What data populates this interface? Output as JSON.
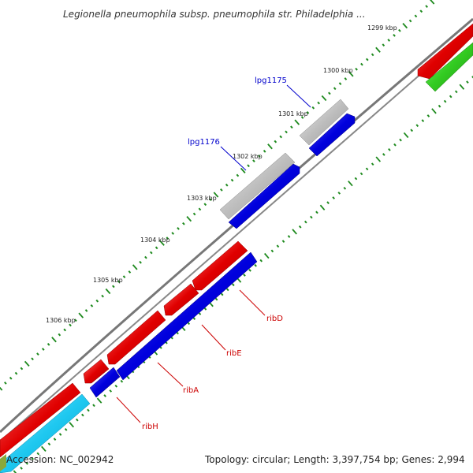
{
  "title": "Legionella pneumophila subsp. pneumophila str. Philadelphia ...",
  "footer": {
    "accession": "Accession: NC_002942",
    "summary": "Topology: circular; Length: 3,397,754 bp; Genes: 2,994"
  },
  "scale_ticks": [
    "1299 kbp",
    "1300 kbp",
    "1301 kbp",
    "1302 kbp",
    "1303 kbp",
    "1304 kbp",
    "1305 kbp",
    "1306 kbp"
  ],
  "gene_labels": {
    "lpg1175": "lpg1175",
    "lpg1176": "lpg1176",
    "ribD": "ribD",
    "ribE": "ribE",
    "ribA": "ribA",
    "ribH": "ribH"
  },
  "colors": {
    "forward_cds": "#e00000",
    "reverse_cds": "#0000dd",
    "hypothetical": "#bdbdbd",
    "cyan_feature": "#1ec8f0",
    "green_feature": "#33cc22",
    "backbone": "#777777",
    "scale_ticks": "#1e8a1e",
    "gene_label_blue": "#0000cc",
    "gene_label_red": "#cc0000"
  }
}
